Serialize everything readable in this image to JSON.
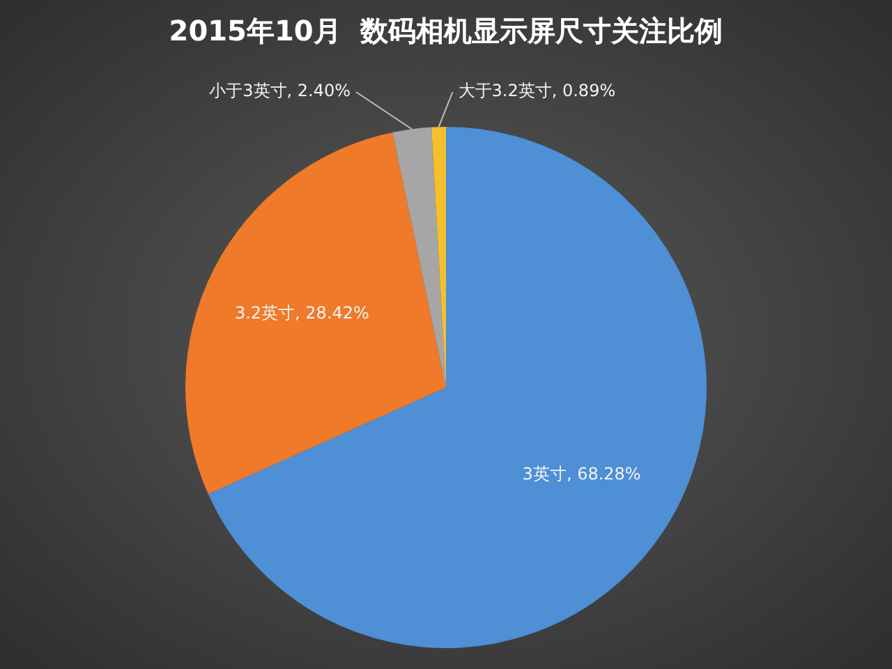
{
  "chart_data": {
    "type": "pie",
    "title": "2015年10月  数码相机显示屏尺寸关注比例",
    "categories": [
      "3英寸",
      "3.2英寸",
      "小于3英寸",
      "大于3.2英寸"
    ],
    "values": [
      68.28,
      28.42,
      2.4,
      0.89
    ],
    "value_labels": [
      "68.28%",
      "28.42%",
      "2.40%",
      "0.89%"
    ],
    "colors": [
      "#4e8fd6",
      "#ee7a2a",
      "#a6a6a6",
      "#f5c02c"
    ],
    "legend": false
  }
}
